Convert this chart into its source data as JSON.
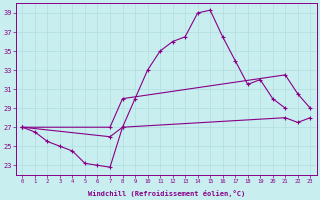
{
  "xlabel": "Windchill (Refroidissement éolien,°C)",
  "xlim": [
    -0.5,
    23.5
  ],
  "ylim": [
    22,
    40
  ],
  "yticks": [
    23,
    25,
    27,
    29,
    31,
    33,
    35,
    37,
    39
  ],
  "xticks": [
    0,
    1,
    2,
    3,
    4,
    5,
    6,
    7,
    8,
    9,
    10,
    11,
    12,
    13,
    14,
    15,
    16,
    17,
    18,
    19,
    20,
    21,
    22,
    23
  ],
  "bg_color": "#c8eef0",
  "line_color": "#880088",
  "grid_color": "#b0dde0",
  "line_upper": {
    "x": [
      0,
      1,
      2,
      3,
      4,
      5,
      6,
      7,
      8,
      9,
      10,
      11,
      12,
      13,
      14,
      15,
      16,
      17,
      18,
      19,
      20,
      21
    ],
    "y": [
      27,
      26.5,
      25.5,
      25,
      24.5,
      23.2,
      23,
      22.8,
      27,
      30,
      33,
      35,
      36,
      36.5,
      39,
      39.3,
      36.5,
      34,
      31.5,
      32,
      30,
      29
    ]
  },
  "line_mid": {
    "x": [
      0,
      7,
      8,
      21,
      22,
      23
    ],
    "y": [
      27,
      27,
      30,
      32.5,
      30.5,
      29
    ]
  },
  "line_lower": {
    "x": [
      0,
      7,
      8,
      21,
      22,
      23
    ],
    "y": [
      27,
      26,
      27,
      28,
      27.5,
      28
    ]
  }
}
